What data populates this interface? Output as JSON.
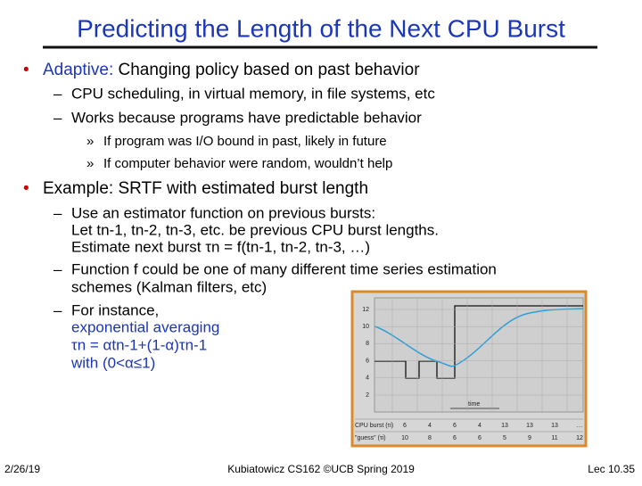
{
  "title": "Predicting the Length of the Next CPU Burst",
  "bullets": [
    {
      "label": "Adaptive:",
      "text": " Changing policy based on past behavior",
      "subs": [
        {
          "text": "CPU scheduling, in virtual memory, in file systems, etc"
        },
        {
          "text": "Works because programs have predictable behavior",
          "subs": [
            "If program was I/O bound in past, likely in future",
            "If computer behavior were random, wouldn’t help"
          ]
        }
      ]
    },
    {
      "text": "Example: SRTF with estimated burst length",
      "subs": [
        {
          "lines": [
            "Use an estimator function on previous bursts:",
            "Let tn-1, tn-2, tn-3, etc. be previous CPU burst lengths.",
            "Estimate next burst τn = f(tn-1, tn-2, tn-3, …)"
          ]
        },
        {
          "lines": [
            "Function f could be one of many different time series estimation",
            "schemes (Kalman filters, etc)"
          ]
        },
        {
          "lines": [
            "For instance,",
            "exponential averaging",
            "τn = αtn-1+(1-α)τn-1",
            "with (0<α≤1)"
          ]
        }
      ]
    }
  ],
  "figure": {
    "yticks": [
      12,
      10,
      8,
      6,
      4,
      2
    ],
    "time_label": "time",
    "rows": [
      {
        "label": "CPU burst (τi)",
        "values": [
          6,
          4,
          6,
          4,
          13,
          13,
          13
        ],
        "more": "…"
      },
      {
        "label": "\"guess\" (τi)",
        "values": [
          10,
          8,
          6,
          6,
          5,
          9,
          11,
          12
        ],
        "more": "…"
      }
    ]
  },
  "footer": {
    "date": "2/26/19",
    "center": "Kubiatowicz CS162 ©UCB Spring 2019",
    "page": "Lec 10.35"
  }
}
